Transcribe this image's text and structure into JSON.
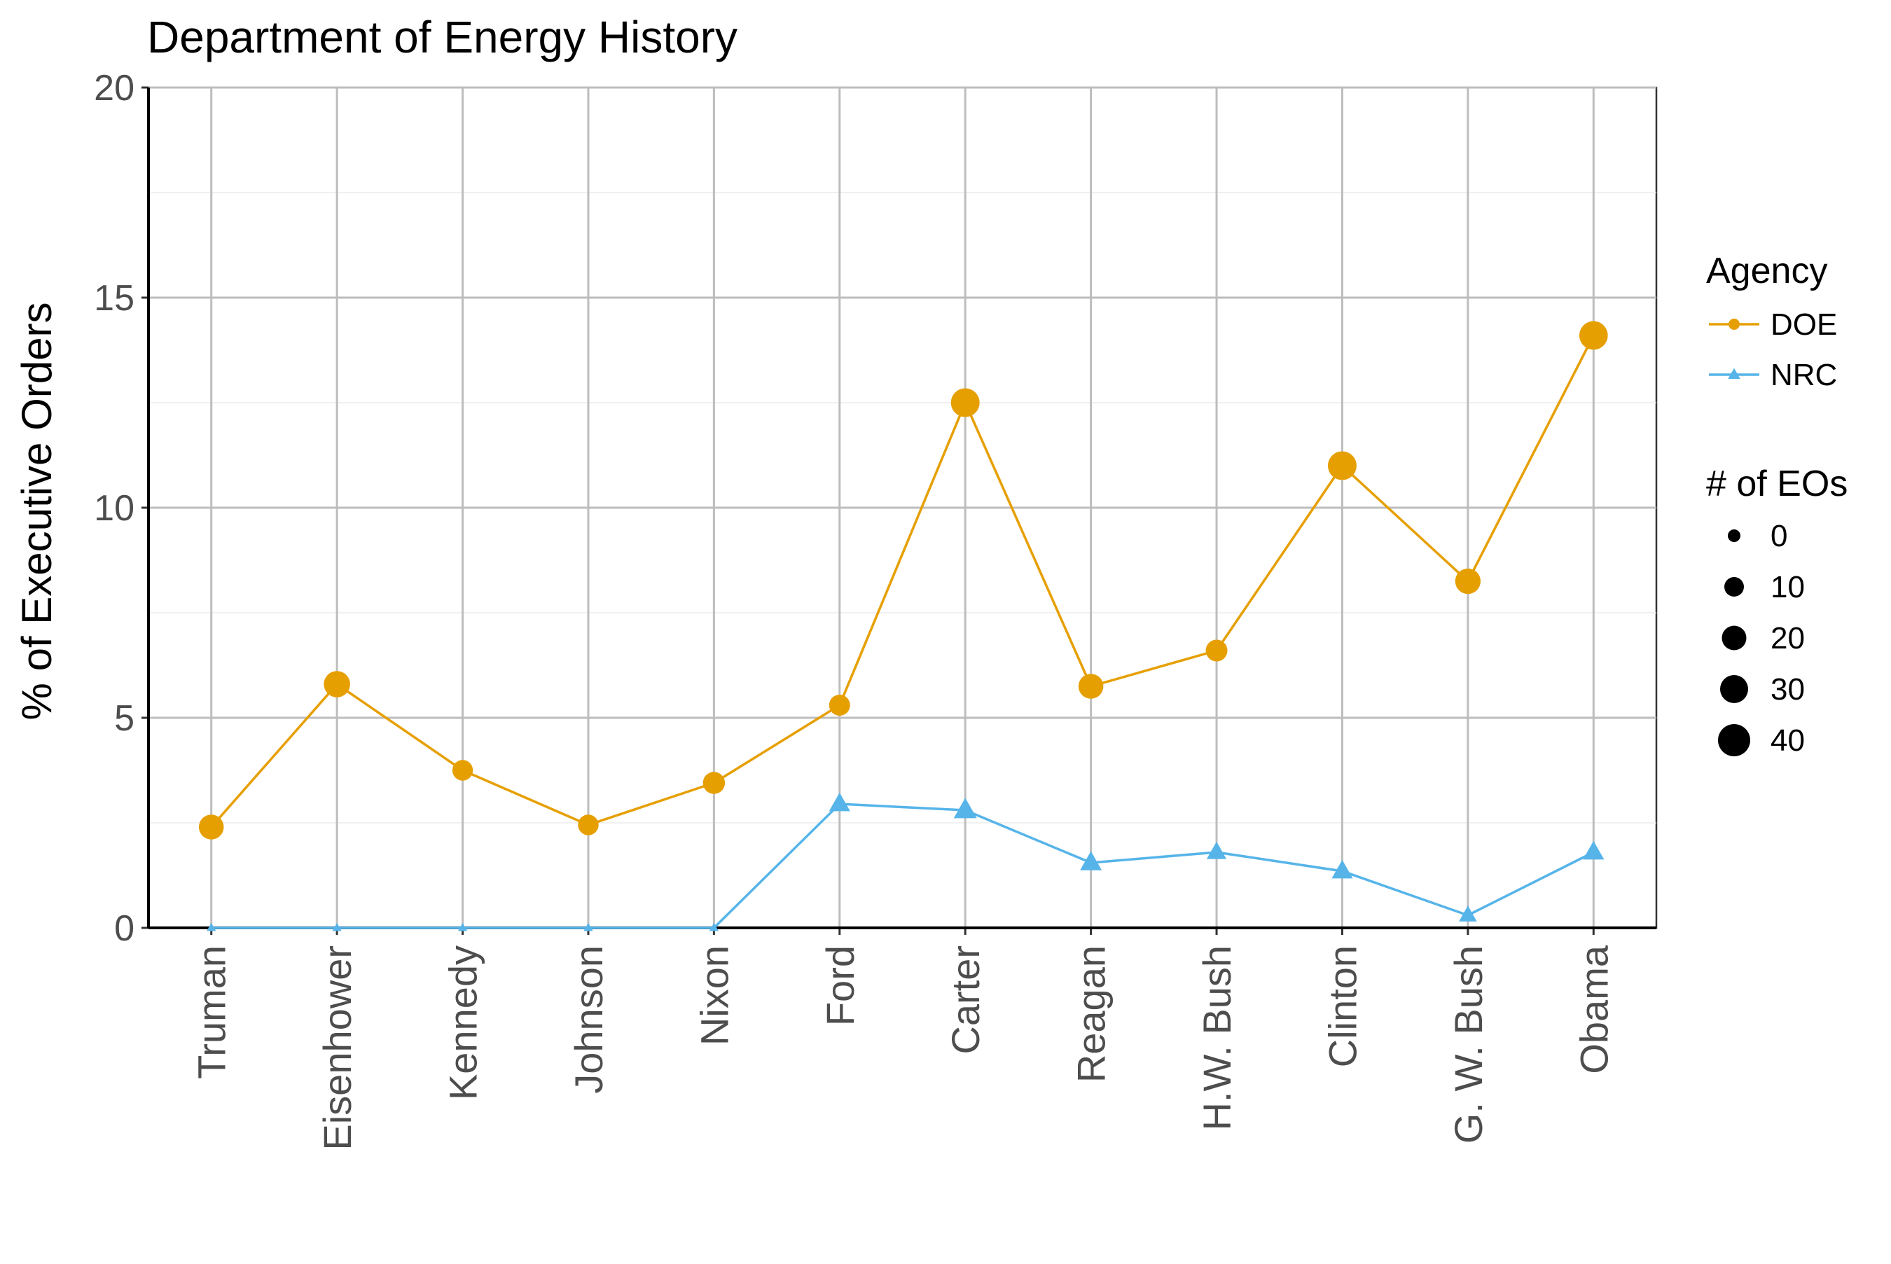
{
  "chart_data": {
    "type": "line",
    "title": "Department of Energy History",
    "xlabel": "",
    "ylabel": "% of Executive Orders",
    "ylim": [
      0,
      20
    ],
    "yticks": [
      0,
      5,
      10,
      15,
      20
    ],
    "grid": true,
    "categories": [
      "Truman",
      "Eisenhower",
      "Kennedy",
      "Johnson",
      "Nixon",
      "Ford",
      "Carter",
      "Reagan",
      "H.W. Bush",
      "Clinton",
      "G. W. Bush",
      "Obama"
    ],
    "series": [
      {
        "name": "DOE",
        "color": "#E69F00",
        "marker": "circle",
        "values": [
          2.4,
          5.8,
          3.75,
          2.45,
          3.45,
          5.3,
          12.5,
          5.75,
          6.6,
          11.0,
          8.25,
          14.1
        ],
        "eo_counts": [
          22,
          28,
          8,
          8,
          12,
          9,
          40,
          22,
          11,
          40,
          24,
          39
        ]
      },
      {
        "name": "NRC",
        "color": "#56B4E9",
        "marker": "triangle",
        "values": [
          0,
          0,
          0,
          0,
          0,
          2.95,
          2.8,
          1.55,
          1.8,
          1.35,
          0.3,
          1.8
        ],
        "eo_counts": [
          0,
          0,
          0,
          0,
          0,
          5,
          9,
          6,
          3,
          5,
          1,
          5
        ]
      }
    ],
    "legend": {
      "position": "right",
      "agency_title": "Agency",
      "size_title": "# of EOs",
      "size_values": [
        "0",
        "10",
        "20",
        "30",
        "40"
      ]
    }
  }
}
